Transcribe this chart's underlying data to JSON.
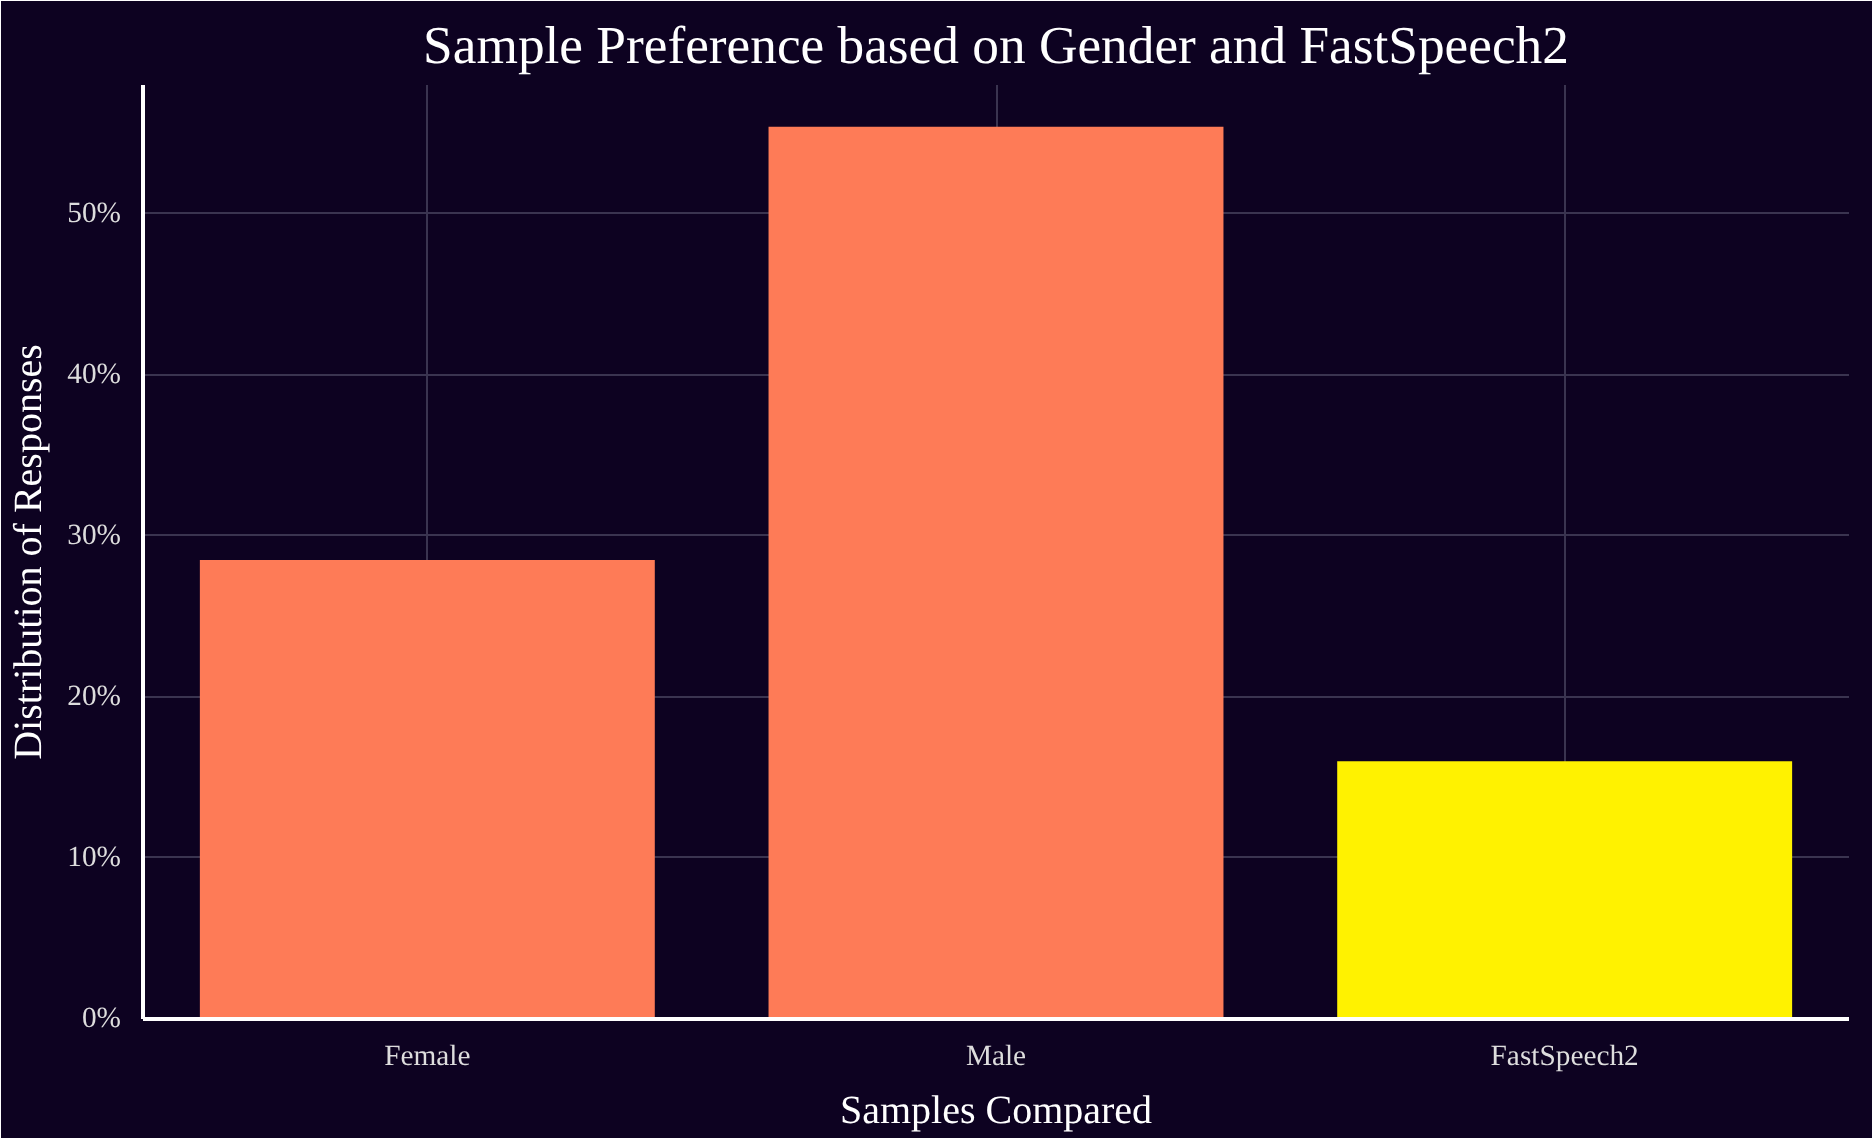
{
  "chart_data": {
    "type": "bar",
    "title": "Sample Preference based on Gender and FastSpeech2",
    "xlabel": "Samples Compared",
    "ylabel": "Distribution of Responses",
    "categories": [
      "Female",
      "Male",
      "FastSpeech2"
    ],
    "values": [
      28.5,
      55.4,
      16.0
    ],
    "colors": [
      "#fe7b57",
      "#fe7b57",
      "#fff200"
    ],
    "ylim": [
      0,
      58
    ],
    "yticks": [
      {
        "value": 0,
        "label": "0%"
      },
      {
        "value": 10,
        "label": "10%"
      },
      {
        "value": 20,
        "label": "20%"
      },
      {
        "value": 30,
        "label": "30%"
      },
      {
        "value": 40,
        "label": "40%"
      },
      {
        "value": 50,
        "label": "50%"
      }
    ],
    "grid": true
  }
}
